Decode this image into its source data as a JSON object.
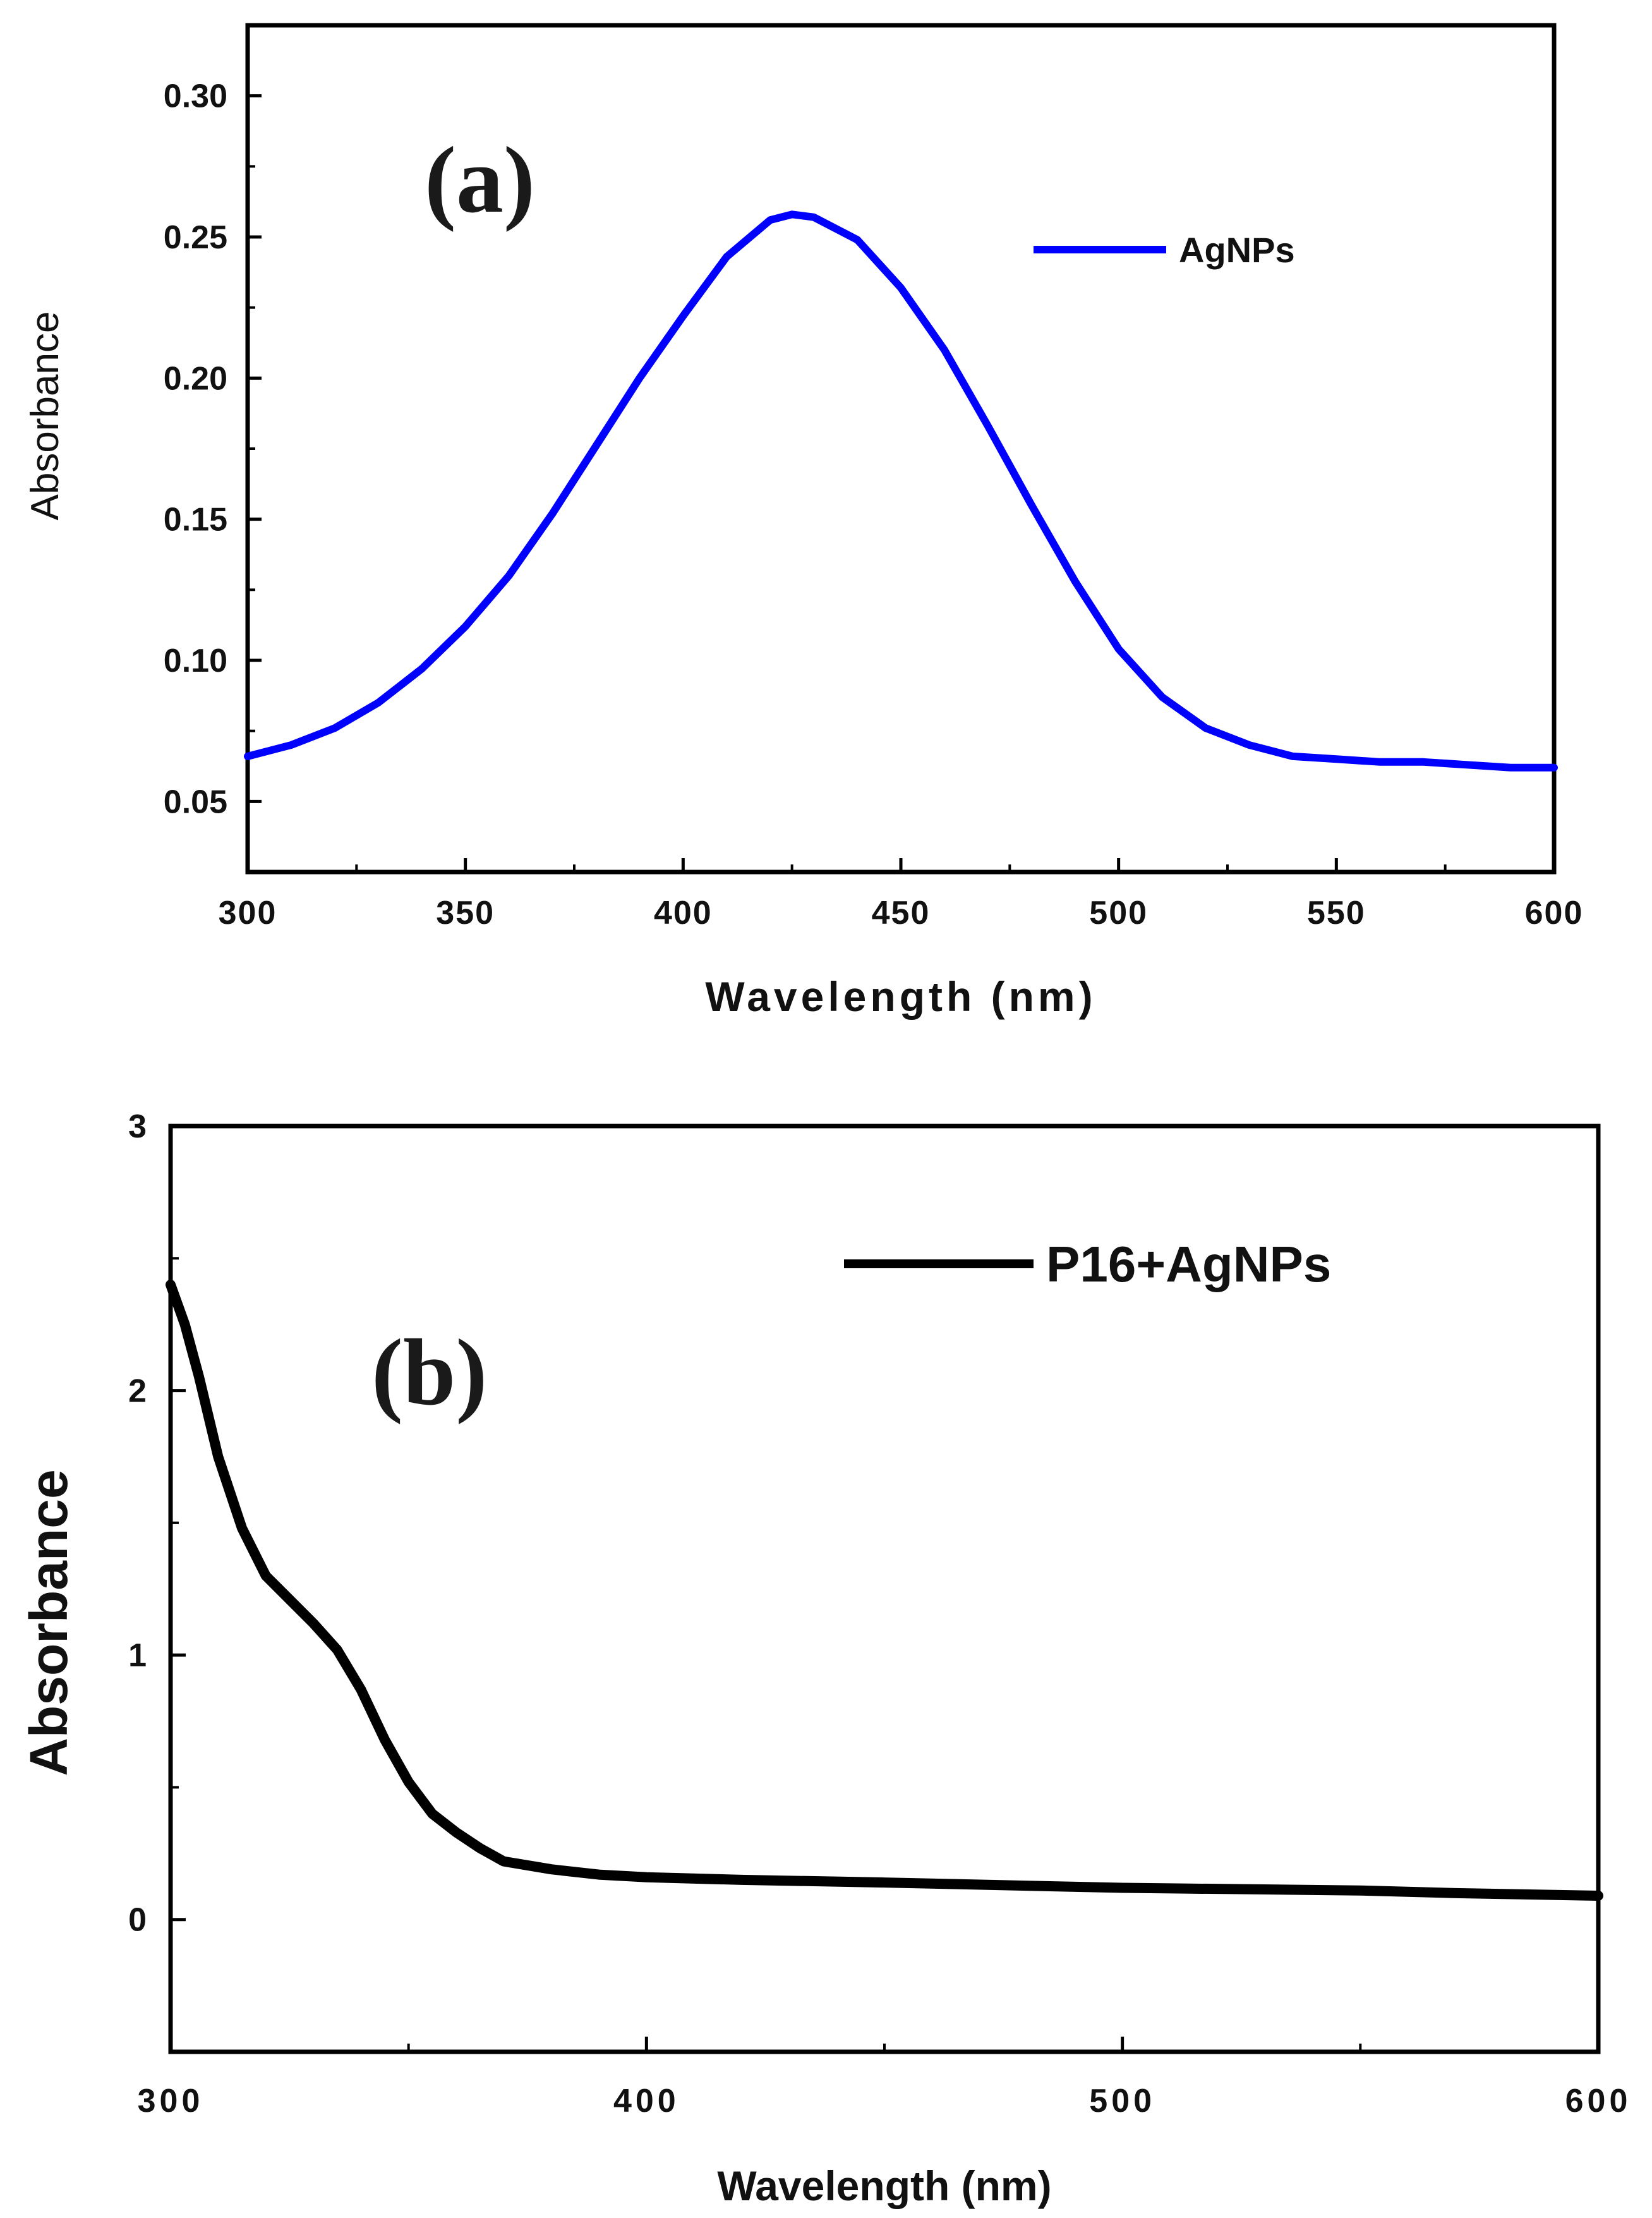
{
  "chart_data": [
    {
      "type": "line",
      "panel_label": "(a)",
      "xlabel": "Wavelength (nm)",
      "ylabel": "Absorbance",
      "xlim": [
        300,
        600
      ],
      "ylim": [
        0.025,
        0.325
      ],
      "x_ticks": [
        "300",
        "350",
        "400",
        "450",
        "500",
        "550",
        "600"
      ],
      "y_ticks": [
        "0.05",
        "0.10",
        "0.15",
        "0.20",
        "0.25",
        "0.30"
      ],
      "legend_position": "top-right",
      "series": [
        {
          "name": "AgNPs",
          "color": "#0000ff",
          "x": [
            300,
            310,
            320,
            330,
            340,
            350,
            360,
            370,
            380,
            390,
            400,
            410,
            420,
            425,
            430,
            440,
            450,
            460,
            470,
            480,
            490,
            500,
            510,
            520,
            530,
            540,
            550,
            560,
            570,
            580,
            590,
            600
          ],
          "y": [
            0.066,
            0.07,
            0.076,
            0.085,
            0.097,
            0.112,
            0.13,
            0.152,
            0.176,
            0.2,
            0.222,
            0.243,
            0.256,
            0.258,
            0.257,
            0.249,
            0.232,
            0.21,
            0.183,
            0.155,
            0.128,
            0.104,
            0.087,
            0.076,
            0.07,
            0.066,
            0.065,
            0.064,
            0.064,
            0.063,
            0.062,
            0.062
          ]
        }
      ]
    },
    {
      "type": "line",
      "panel_label": "(b)",
      "xlabel": "Wavelength (nm)",
      "ylabel": "Absorbance",
      "xlim": [
        300,
        600
      ],
      "ylim": [
        -0.5,
        3
      ],
      "x_ticks": [
        "300",
        "400",
        "500",
        "600"
      ],
      "y_ticks": [
        "0",
        "1",
        "2",
        "3"
      ],
      "legend_position": "top-right",
      "series": [
        {
          "name": "P16+AgNPs",
          "color": "#000000",
          "x": [
            300,
            303,
            306,
            310,
            315,
            320,
            325,
            330,
            335,
            340,
            345,
            350,
            355,
            360,
            365,
            370,
            380,
            390,
            400,
            420,
            450,
            500,
            550,
            570,
            600
          ],
          "y": [
            2.4,
            2.25,
            2.05,
            1.75,
            1.48,
            1.3,
            1.21,
            1.12,
            1.02,
            0.87,
            0.68,
            0.52,
            0.4,
            0.33,
            0.27,
            0.22,
            0.19,
            0.17,
            0.16,
            0.15,
            0.14,
            0.12,
            0.11,
            0.1,
            0.09
          ]
        }
      ]
    }
  ]
}
